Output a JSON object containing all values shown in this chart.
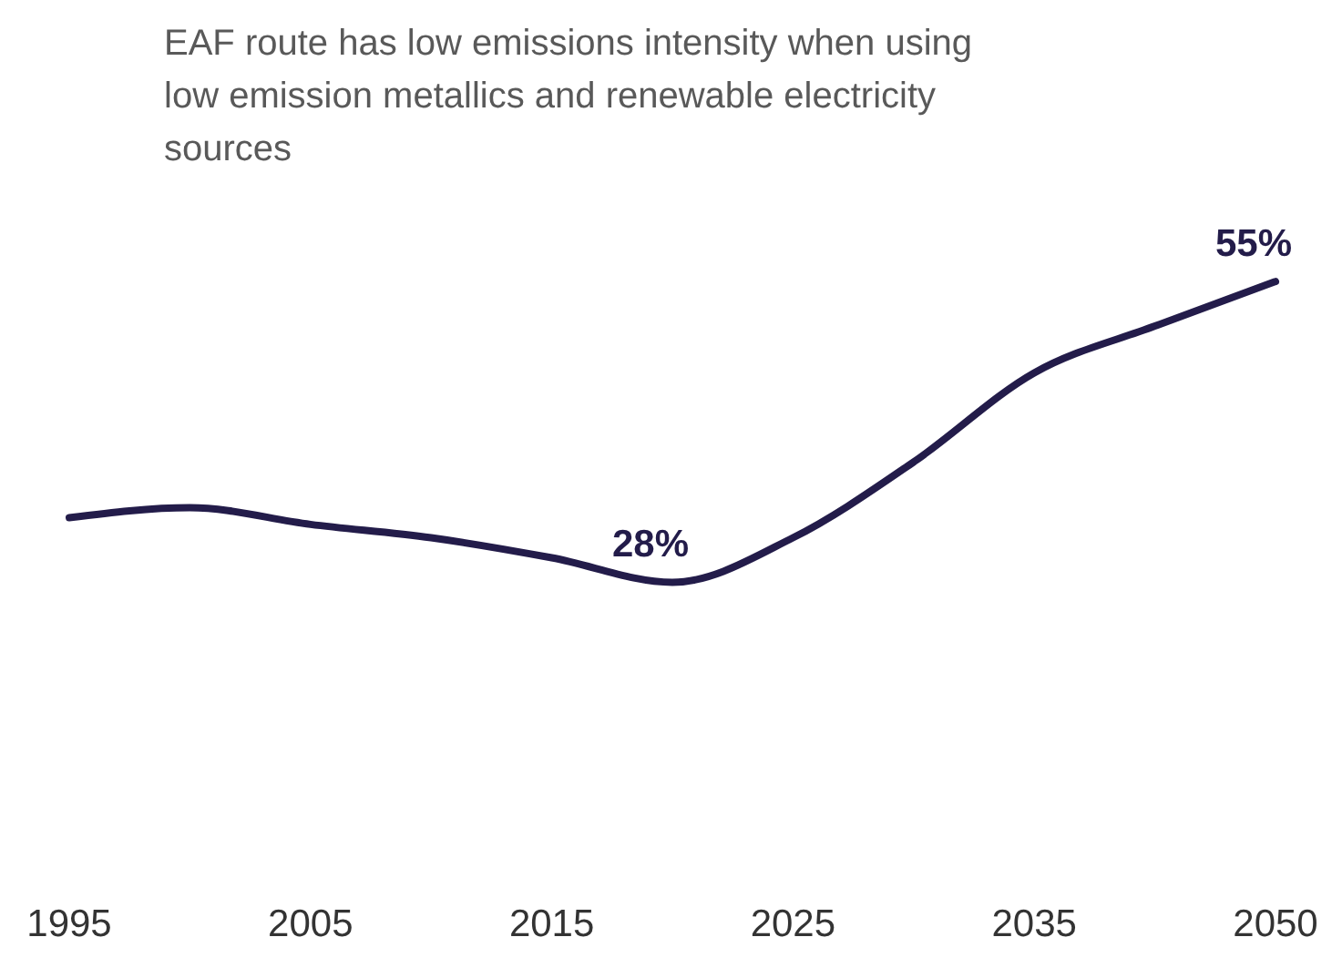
{
  "chart_data": {
    "type": "line",
    "title": "EAF route has low emissions intensity when using low emission metallics and renewable electricity sources",
    "categories": [
      "1995",
      null,
      "2005",
      null,
      "2015",
      null,
      "2025",
      null,
      "2035",
      null,
      "2050"
    ],
    "series": [
      {
        "color": "#231c4a",
        "values": [
          33.8,
          34.7,
          33.2,
          32,
          30.2,
          28,
          32,
          38.8,
          46.8,
          51,
          55
        ],
        "value_labels": [
          null,
          null,
          null,
          null,
          null,
          "28%",
          null,
          null,
          null,
          null,
          "55%"
        ]
      }
    ],
    "tick_labels": "x",
    "marker": "none",
    "line_style": "solid"
  }
}
